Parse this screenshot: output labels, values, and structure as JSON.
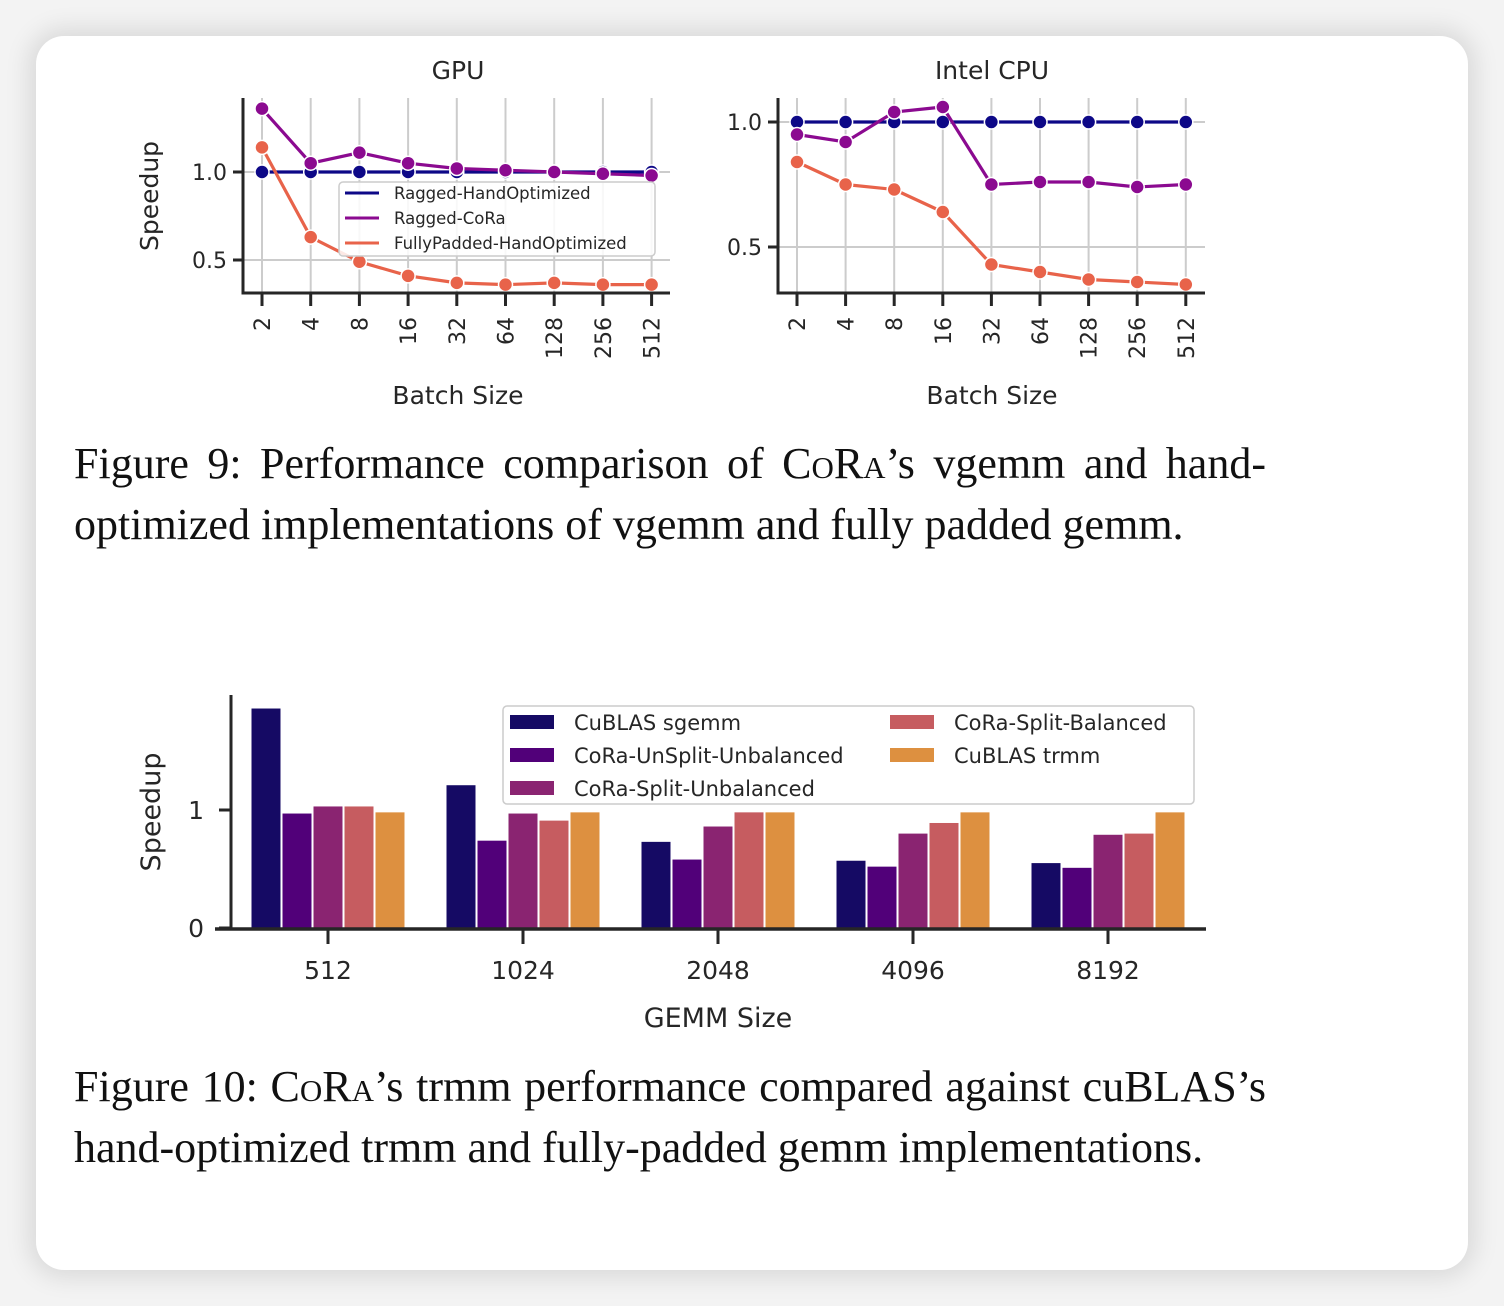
{
  "figure9": {
    "caption_prefix": "Figure 9:",
    "caption_text": " Performance comparison of CoRa’s vgemm and hand-optimized implementations of vgemm and fully padded gemm."
  },
  "figure10": {
    "caption_prefix": "Figure 10:",
    "caption_text": " CoRa’s trmm performance compared against cuBLAS’s hand-optimized trmm and fully-padded gemm implementations."
  },
  "chart_data": [
    {
      "type": "line",
      "title": "GPU",
      "xlabel": "Batch Size",
      "ylabel": "Speedup",
      "categories": [
        "2",
        "4",
        "8",
        "16",
        "32",
        "64",
        "128",
        "256",
        "512"
      ],
      "yticks": [
        "0.5",
        "1.0"
      ],
      "ylim": [
        0.3,
        1.4
      ],
      "grid": true,
      "legend": "center-right",
      "series": [
        {
          "name": "Ragged-HandOptimized",
          "color": "#0d0887",
          "values": [
            1.0,
            1.0,
            1.0,
            1.0,
            1.0,
            1.0,
            1.0,
            1.0,
            1.0
          ]
        },
        {
          "name": "Ragged-CoRa",
          "color": "#8b0a90",
          "values": [
            1.36,
            1.05,
            1.11,
            1.05,
            1.02,
            1.01,
            1.0,
            0.99,
            0.98
          ]
        },
        {
          "name": "FullyPadded-HandOptimized",
          "color": "#e8634a",
          "values": [
            1.14,
            0.63,
            0.49,
            0.41,
            0.37,
            0.36,
            0.37,
            0.36,
            0.36
          ]
        }
      ]
    },
    {
      "type": "line",
      "title": "Intel CPU",
      "xlabel": "Batch Size",
      "ylabel": "",
      "categories": [
        "2",
        "4",
        "8",
        "16",
        "32",
        "64",
        "128",
        "256",
        "512"
      ],
      "yticks": [
        "0.5",
        "1.0"
      ],
      "ylim": [
        0.32,
        1.1
      ],
      "grid": true,
      "legend": "none",
      "series": [
        {
          "name": "Ragged-HandOptimized",
          "color": "#0d0887",
          "values": [
            1.0,
            1.0,
            1.0,
            1.0,
            1.0,
            1.0,
            1.0,
            1.0,
            1.0
          ]
        },
        {
          "name": "Ragged-CoRa",
          "color": "#8b0a90",
          "values": [
            0.95,
            0.92,
            1.04,
            1.06,
            0.75,
            0.76,
            0.76,
            0.74,
            0.75
          ]
        },
        {
          "name": "FullyPadded-HandOptimized",
          "color": "#e8634a",
          "values": [
            0.84,
            0.75,
            0.73,
            0.64,
            0.43,
            0.4,
            0.37,
            0.36,
            0.35
          ]
        }
      ]
    },
    {
      "type": "bar",
      "title": "",
      "xlabel": "GEMM Size",
      "ylabel": "Speedup",
      "categories": [
        "512",
        "1024",
        "2048",
        "4096",
        "8192"
      ],
      "yticks": [
        "0",
        "1"
      ],
      "ylim": [
        0,
        1.9
      ],
      "grid": false,
      "legend": "top-right",
      "series": [
        {
          "name": "CuBLAS sgemm",
          "color": "#150a64",
          "values": [
            1.86,
            1.21,
            0.73,
            0.57,
            0.55
          ]
        },
        {
          "name": "CoRa-UnSplit-Unbalanced",
          "color": "#510079",
          "values": [
            0.97,
            0.74,
            0.58,
            0.52,
            0.51
          ]
        },
        {
          "name": "CoRa-Split-Unbalanced",
          "color": "#8a2471",
          "values": [
            1.03,
            0.97,
            0.86,
            0.8,
            0.79
          ]
        },
        {
          "name": "CoRa-Split-Balanced",
          "color": "#c65c60",
          "values": [
            1.03,
            0.91,
            0.98,
            0.89,
            0.8
          ]
        },
        {
          "name": "CuBLAS trmm",
          "color": "#dd9040",
          "values": [
            0.98,
            0.98,
            0.98,
            0.98,
            0.98
          ]
        }
      ]
    }
  ]
}
